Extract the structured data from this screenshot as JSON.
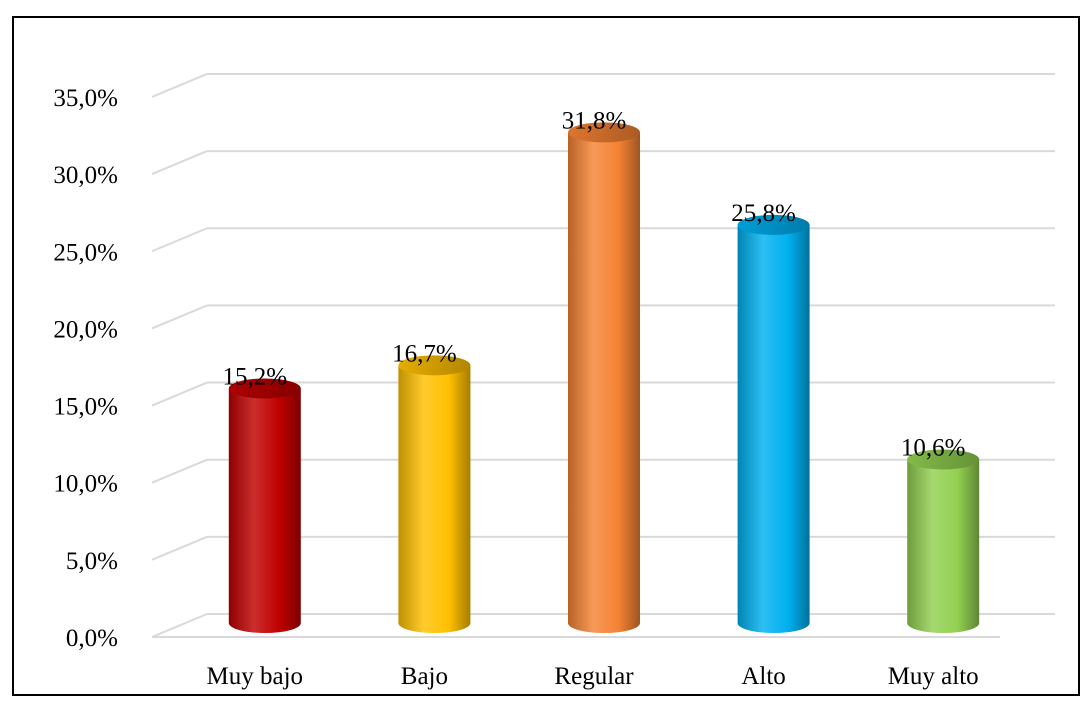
{
  "chart_data": {
    "type": "bar",
    "style": "3d-cylinder",
    "categories": [
      "Muy bajo",
      "Bajo",
      "Regular",
      "Alto",
      "Muy alto"
    ],
    "values": [
      15.2,
      16.7,
      31.8,
      25.8,
      10.6
    ],
    "data_labels": [
      "15,2%",
      "16,7%",
      "31,8%",
      "25,8%",
      "10,6%"
    ],
    "y_ticks": [
      0,
      5,
      10,
      15,
      20,
      25,
      30,
      35
    ],
    "y_tick_labels": [
      "0,0%",
      "5,0%",
      "10,0%",
      "15,0%",
      "20,0%",
      "25,0%",
      "30,0%",
      "35,0%"
    ],
    "ylim": [
      0,
      35
    ],
    "title": "",
    "xlabel": "",
    "ylabel": "",
    "grid": true,
    "legend": "none",
    "colors": [
      "#c00000",
      "#ffc000",
      "#f58233",
      "#00b0f0",
      "#92d050"
    ]
  }
}
